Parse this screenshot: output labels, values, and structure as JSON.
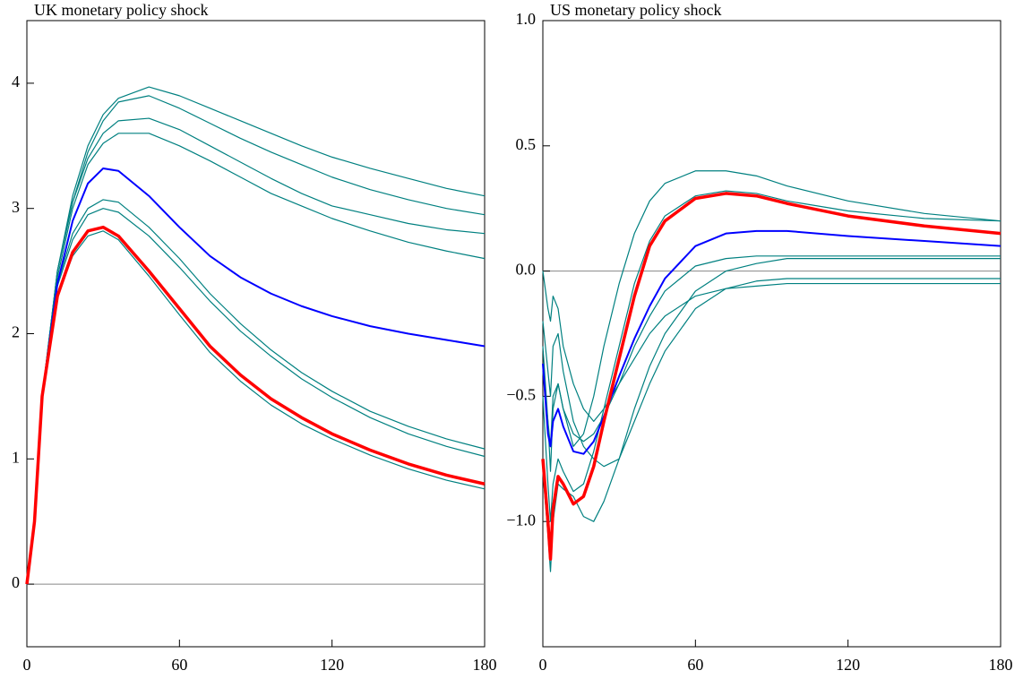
{
  "chart_data": [
    {
      "type": "line",
      "title": "UK monetary policy shock",
      "x": [
        0,
        3,
        6,
        12,
        18,
        24,
        30,
        36,
        48,
        60,
        72,
        84,
        96,
        108,
        120,
        135,
        150,
        165,
        180
      ],
      "xlim": [
        0,
        180
      ],
      "xticks": [
        0,
        60,
        120,
        180
      ],
      "ylim": [
        -0.5,
        4.5
      ],
      "yticks": [
        0,
        1,
        2,
        3,
        4
      ],
      "reference_line": 0,
      "series": [
        {
          "color": "#008080",
          "values": [
            0,
            0.5,
            1.5,
            2.5,
            3.1,
            3.5,
            3.75,
            3.88,
            3.97,
            3.9,
            3.8,
            3.7,
            3.6,
            3.5,
            3.41,
            3.32,
            3.24,
            3.16,
            3.1
          ]
        },
        {
          "color": "#008080",
          "values": [
            0,
            0.5,
            1.5,
            2.5,
            3.05,
            3.45,
            3.7,
            3.85,
            3.9,
            3.8,
            3.68,
            3.56,
            3.45,
            3.35,
            3.25,
            3.15,
            3.07,
            3.0,
            2.95
          ]
        },
        {
          "color": "#008080",
          "values": [
            0,
            0.5,
            1.5,
            2.5,
            3.05,
            3.4,
            3.6,
            3.7,
            3.72,
            3.63,
            3.5,
            3.37,
            3.24,
            3.12,
            3.02,
            2.95,
            2.88,
            2.83,
            2.8
          ]
        },
        {
          "color": "#008080",
          "values": [
            0,
            0.5,
            1.5,
            2.45,
            3.0,
            3.35,
            3.52,
            3.6,
            3.6,
            3.5,
            3.38,
            3.25,
            3.12,
            3.02,
            2.92,
            2.82,
            2.73,
            2.66,
            2.6
          ]
        },
        {
          "color": "#008080",
          "values": [
            0,
            0.5,
            1.5,
            2.4,
            2.8,
            3.0,
            3.07,
            3.05,
            2.85,
            2.6,
            2.32,
            2.08,
            1.87,
            1.69,
            1.54,
            1.38,
            1.26,
            1.16,
            1.08
          ]
        },
        {
          "color": "#008080",
          "values": [
            0,
            0.5,
            1.5,
            2.38,
            2.75,
            2.95,
            3.0,
            2.97,
            2.78,
            2.53,
            2.26,
            2.02,
            1.82,
            1.64,
            1.49,
            1.33,
            1.2,
            1.1,
            1.02
          ]
        },
        {
          "color": "#008080",
          "values": [
            0,
            0.5,
            1.5,
            2.3,
            2.62,
            2.78,
            2.82,
            2.75,
            2.46,
            2.15,
            1.85,
            1.62,
            1.43,
            1.28,
            1.16,
            1.03,
            0.92,
            0.83,
            0.76
          ]
        },
        {
          "color": "#0000ff",
          "values": [
            0,
            0.5,
            1.5,
            2.4,
            2.9,
            3.2,
            3.32,
            3.3,
            3.1,
            2.85,
            2.62,
            2.45,
            2.32,
            2.22,
            2.14,
            2.06,
            2.0,
            1.95,
            1.9
          ]
        },
        {
          "color": "#ff0000",
          "values": [
            0,
            0.5,
            1.5,
            2.3,
            2.65,
            2.82,
            2.85,
            2.78,
            2.5,
            2.2,
            1.9,
            1.67,
            1.48,
            1.33,
            1.2,
            1.07,
            0.96,
            0.87,
            0.8
          ]
        }
      ]
    },
    {
      "type": "line",
      "title": "US monetary policy shock",
      "x": [
        0,
        2,
        3,
        4,
        6,
        8,
        12,
        16,
        20,
        24,
        30,
        36,
        42,
        48,
        60,
        72,
        84,
        96,
        120,
        150,
        180
      ],
      "xlim": [
        0,
        180
      ],
      "xticks": [
        0,
        60,
        120,
        180
      ],
      "ylim": [
        -1.5,
        1.0
      ],
      "yticks": [
        {
          "value": -1.0,
          "label": "−1.0"
        },
        {
          "value": -0.5,
          "label": "−0.5"
        },
        {
          "value": 0,
          "label": "0.0"
        },
        {
          "value": 0.5,
          "label": "0.5"
        },
        {
          "value": 1.0,
          "label": "1.0"
        }
      ],
      "reference_line": 0,
      "series": [
        {
          "color": "#008080",
          "values": [
            -0.3,
            -0.6,
            -0.8,
            -0.55,
            -0.45,
            -0.55,
            -0.7,
            -0.65,
            -0.5,
            -0.3,
            -0.05,
            0.15,
            0.28,
            0.35,
            0.4,
            0.4,
            0.38,
            0.34,
            0.28,
            0.23,
            0.2
          ]
        },
        {
          "color": "#008080",
          "values": [
            -0.8,
            -1.05,
            -1.2,
            -1.0,
            -0.85,
            -0.87,
            -0.9,
            -0.98,
            -1.0,
            -0.92,
            -0.75,
            -0.55,
            -0.38,
            -0.25,
            -0.08,
            0.0,
            0.03,
            0.05,
            0.05,
            0.05,
            0.05
          ]
        },
        {
          "color": "#008080",
          "values": [
            0,
            -0.15,
            -0.2,
            -0.1,
            -0.15,
            -0.3,
            -0.45,
            -0.55,
            -0.6,
            -0.55,
            -0.45,
            -0.35,
            -0.25,
            -0.18,
            -0.1,
            -0.07,
            -0.06,
            -0.05,
            -0.05,
            -0.05,
            -0.05
          ]
        },
        {
          "color": "#008080",
          "values": [
            -0.2,
            -0.4,
            -0.5,
            -0.3,
            -0.25,
            -0.4,
            -0.6,
            -0.7,
            -0.75,
            -0.78,
            -0.75,
            -0.6,
            -0.45,
            -0.32,
            -0.15,
            -0.07,
            -0.04,
            -0.03,
            -0.03,
            -0.03,
            -0.03
          ]
        },
        {
          "color": "#008080",
          "values": [
            -0.5,
            -0.85,
            -1.0,
            -0.85,
            -0.75,
            -0.8,
            -0.88,
            -0.85,
            -0.72,
            -0.55,
            -0.3,
            -0.05,
            0.12,
            0.22,
            0.3,
            0.32,
            0.31,
            0.28,
            0.24,
            0.21,
            0.2
          ]
        },
        {
          "color": "#008080",
          "values": [
            -0.4,
            -0.6,
            -0.7,
            -0.5,
            -0.45,
            -0.55,
            -0.65,
            -0.68,
            -0.65,
            -0.58,
            -0.45,
            -0.3,
            -0.18,
            -0.08,
            0.02,
            0.05,
            0.06,
            0.06,
            0.06,
            0.06,
            0.06
          ]
        },
        {
          "color": "#0000ff",
          "values": [
            -0.37,
            -0.65,
            -0.7,
            -0.6,
            -0.55,
            -0.62,
            -0.72,
            -0.73,
            -0.68,
            -0.58,
            -0.42,
            -0.27,
            -0.14,
            -0.03,
            0.1,
            0.15,
            0.16,
            0.16,
            0.14,
            0.12,
            0.1
          ]
        },
        {
          "color": "#ff0000",
          "values": [
            -0.75,
            -1.0,
            -1.15,
            -0.95,
            -0.82,
            -0.85,
            -0.93,
            -0.9,
            -0.78,
            -0.6,
            -0.35,
            -0.1,
            0.1,
            0.2,
            0.29,
            0.31,
            0.3,
            0.27,
            0.22,
            0.18,
            0.15
          ]
        }
      ]
    }
  ]
}
